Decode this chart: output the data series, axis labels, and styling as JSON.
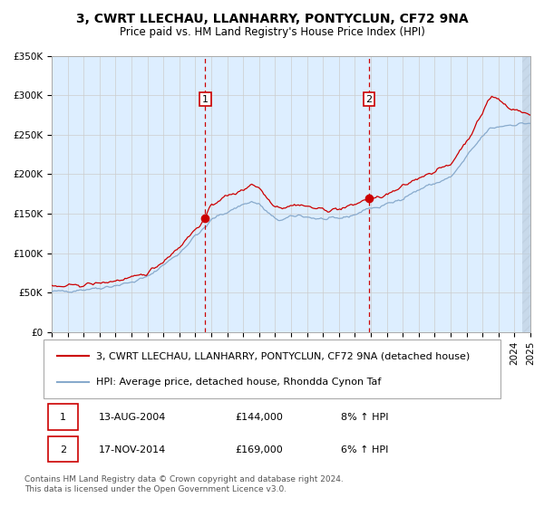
{
  "title": "3, CWRT LLECHAU, LLANHARRY, PONTYCLUN, CF72 9NA",
  "subtitle": "Price paid vs. HM Land Registry's House Price Index (HPI)",
  "legend_line1": "3, CWRT LLECHAU, LLANHARRY, PONTYCLUN, CF72 9NA (detached house)",
  "legend_line2": "HPI: Average price, detached house, Rhondda Cynon Taf",
  "footnote": "Contains HM Land Registry data © Crown copyright and database right 2024.\nThis data is licensed under the Open Government Licence v3.0.",
  "purchase1_date": "13-AUG-2004",
  "purchase1_price": 144000,
  "purchase1_hpi": "8% ↑ HPI",
  "purchase1_x": 2004.617,
  "purchase2_date": "17-NOV-2014",
  "purchase2_price": 169000,
  "purchase2_hpi": "6% ↑ HPI",
  "purchase2_x": 2014.878,
  "xmin": 1995,
  "xmax": 2025,
  "ymin": 0,
  "ymax": 350000,
  "yticks": [
    0,
    50000,
    100000,
    150000,
    200000,
    250000,
    300000,
    350000
  ],
  "ytick_labels": [
    "£0",
    "£50K",
    "£100K",
    "£150K",
    "£200K",
    "£250K",
    "£300K",
    "£350K"
  ],
  "bg_color": "#ddeeff",
  "red_line_color": "#cc0000",
  "blue_line_color": "#88aacc",
  "grid_color": "#cccccc",
  "hatch_start": 2024.5,
  "last_x": 2025.0,
  "title_fontsize": 10,
  "subtitle_fontsize": 8.5,
  "axis_fontsize": 7.5,
  "legend_fontsize": 8,
  "table_fontsize": 8
}
